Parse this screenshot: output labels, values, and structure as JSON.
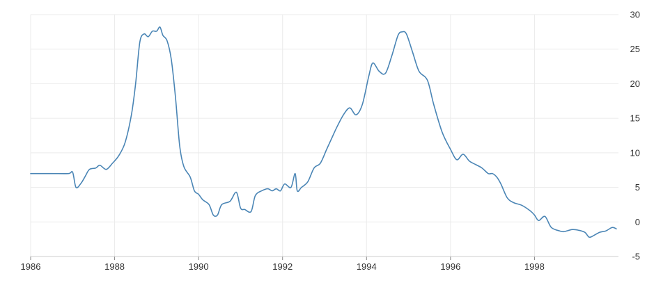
{
  "chart_data": {
    "type": "line",
    "title": "",
    "xlabel": "",
    "ylabel": "",
    "x_tick_labels": [
      "1986",
      "1988",
      "1990",
      "1992",
      "1994",
      "1996",
      "1998"
    ],
    "y_tick_labels": [
      "30",
      "25",
      "20",
      "15",
      "10",
      "5",
      "0",
      "-5"
    ],
    "xlim": [
      1986,
      2000
    ],
    "ylim": [
      -5,
      30
    ],
    "y_axis_position": "right",
    "grid": true,
    "legend": "none",
    "colors": {
      "line": "#4a85b5",
      "grid": "#ebebeb",
      "text": "#333333"
    },
    "series": [
      {
        "x": [
          1986.0,
          1986.5,
          1986.9,
          1987.0,
          1987.08,
          1987.2,
          1987.3,
          1987.4,
          1987.55,
          1987.65,
          1987.8,
          1987.95,
          1988.1,
          1988.25,
          1988.4,
          1988.5,
          1988.6,
          1988.7,
          1988.8,
          1988.9,
          1989.0,
          1989.08,
          1989.15,
          1989.25,
          1989.35,
          1989.45,
          1989.55,
          1989.65,
          1989.8,
          1989.9,
          1990.0,
          1990.1,
          1990.25,
          1990.35,
          1990.45,
          1990.55,
          1990.75,
          1990.9,
          1991.0,
          1991.1,
          1991.25,
          1991.35,
          1991.5,
          1991.65,
          1991.75,
          1991.85,
          1991.95,
          1992.05,
          1992.2,
          1992.3,
          1992.35,
          1992.45,
          1992.6,
          1992.75,
          1992.9,
          1993.05,
          1993.2,
          1993.3,
          1993.45,
          1993.6,
          1993.75,
          1993.9,
          1994.05,
          1994.15,
          1994.3,
          1994.45,
          1994.6,
          1994.75,
          1994.85,
          1994.95,
          1995.1,
          1995.25,
          1995.45,
          1995.6,
          1995.8,
          1996.0,
          1996.15,
          1996.3,
          1996.45,
          1996.6,
          1996.75,
          1996.9,
          1997.0,
          1997.1,
          1997.2,
          1997.35,
          1997.5,
          1997.7,
          1997.9,
          1998.0,
          1998.1,
          1998.25,
          1998.4,
          1998.6,
          1998.7,
          1998.9,
          1999.05,
          1999.2,
          1999.3,
          1999.4,
          1999.55,
          1999.7,
          1999.85,
          1999.95
        ],
        "y": [
          7.0,
          7.0,
          7.0,
          7.2,
          5.0,
          5.6,
          6.6,
          7.6,
          7.8,
          8.2,
          7.6,
          8.5,
          9.6,
          11.5,
          15.5,
          20.0,
          26.0,
          27.2,
          26.8,
          27.6,
          27.6,
          28.2,
          27.0,
          26.2,
          23.5,
          18.0,
          11.0,
          8.0,
          6.5,
          4.5,
          4.0,
          3.2,
          2.5,
          1.0,
          1.0,
          2.5,
          3.0,
          4.3,
          2.0,
          1.8,
          1.5,
          3.8,
          4.5,
          4.8,
          4.5,
          4.8,
          4.5,
          5.5,
          5.0,
          7.0,
          4.5,
          5.0,
          5.8,
          7.8,
          8.5,
          10.5,
          12.5,
          13.8,
          15.5,
          16.5,
          15.5,
          17.0,
          21.0,
          23.0,
          21.8,
          21.5,
          24.0,
          27.0,
          27.5,
          27.2,
          24.5,
          21.8,
          20.5,
          17.0,
          13.0,
          10.5,
          9.0,
          9.8,
          8.8,
          8.3,
          7.8,
          7.0,
          7.0,
          6.5,
          5.5,
          3.5,
          2.8,
          2.4,
          1.6,
          1.0,
          0.2,
          0.8,
          -0.8,
          -1.3,
          -1.4,
          -1.1,
          -1.2,
          -1.5,
          -2.2,
          -2.0,
          -1.5,
          -1.3,
          -0.8,
          -1.0
        ]
      }
    ]
  }
}
